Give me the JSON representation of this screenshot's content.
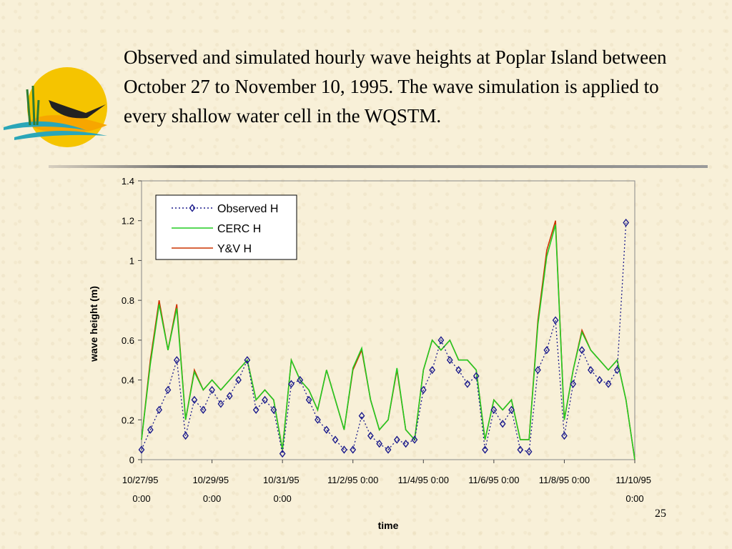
{
  "title": "Observed and simulated hourly wave heights at Poplar Island between October 27 to November 10, 1995. The wave simulation is applied to every shallow water cell in the WQSTM.",
  "page_number": "25",
  "chart_data": {
    "type": "line",
    "x_label": "time",
    "y_label": "wave height (m)",
    "x": [
      "10/27/95 0:00",
      "10/27/95 6:00",
      "10/27/95 12:00",
      "10/27/95 18:00",
      "10/28/95 0:00",
      "10/28/95 6:00",
      "10/28/95 12:00",
      "10/28/95 18:00",
      "10/29/95 0:00",
      "10/29/95 6:00",
      "10/29/95 12:00",
      "10/29/95 18:00",
      "10/30/95 0:00",
      "10/30/95 6:00",
      "10/30/95 12:00",
      "10/30/95 18:00",
      "10/31/95 0:00",
      "10/31/95 6:00",
      "10/31/95 12:00",
      "10/31/95 18:00",
      "11/1/95 0:00",
      "11/1/95 6:00",
      "11/1/95 12:00",
      "11/1/95 18:00",
      "11/2/95 0:00",
      "11/2/95 6:00",
      "11/2/95 12:00",
      "11/2/95 18:00",
      "11/3/95 0:00",
      "11/3/95 6:00",
      "11/3/95 12:00",
      "11/3/95 18:00",
      "11/4/95 0:00",
      "11/4/95 6:00",
      "11/4/95 12:00",
      "11/4/95 18:00",
      "11/5/95 0:00",
      "11/5/95 6:00",
      "11/5/95 12:00",
      "11/5/95 18:00",
      "11/6/95 0:00",
      "11/6/95 6:00",
      "11/6/95 12:00",
      "11/6/95 18:00",
      "11/7/95 0:00",
      "11/7/95 6:00",
      "11/7/95 12:00",
      "11/7/95 18:00",
      "11/8/95 0:00",
      "11/8/95 6:00",
      "11/8/95 12:00",
      "11/8/95 18:00",
      "11/9/95 0:00",
      "11/9/95 6:00",
      "11/9/95 12:00",
      "11/9/95 18:00",
      "11/10/95 0:00"
    ],
    "series": [
      {
        "name": "Observed H",
        "color": "#1c1c8c",
        "marker": "diamond",
        "linestyle": "dotted",
        "values": [
          0.05,
          0.15,
          0.25,
          0.35,
          0.5,
          0.12,
          0.3,
          0.25,
          0.35,
          0.28,
          0.32,
          0.4,
          0.5,
          0.25,
          0.3,
          0.25,
          0.03,
          0.38,
          0.4,
          0.3,
          0.2,
          0.15,
          0.1,
          0.05,
          0.05,
          0.22,
          0.12,
          0.08,
          0.05,
          0.1,
          0.08,
          0.1,
          0.35,
          0.45,
          0.6,
          0.5,
          0.45,
          0.38,
          0.42,
          0.05,
          0.25,
          0.18,
          0.25,
          0.05,
          0.04,
          0.45,
          0.55,
          0.7,
          0.12,
          0.38,
          0.55,
          0.45,
          0.4,
          0.38,
          0.45,
          1.19,
          null
        ]
      },
      {
        "name": "CERC H",
        "color": "#22cc22",
        "values": [
          0.1,
          0.48,
          0.78,
          0.55,
          0.76,
          0.2,
          0.44,
          0.35,
          0.4,
          0.35,
          0.4,
          0.45,
          0.5,
          0.3,
          0.35,
          0.3,
          0.05,
          0.5,
          0.4,
          0.35,
          0.25,
          0.45,
          0.3,
          0.15,
          0.46,
          0.56,
          0.3,
          0.15,
          0.2,
          0.46,
          0.15,
          0.1,
          0.45,
          0.6,
          0.55,
          0.6,
          0.5,
          0.5,
          0.45,
          0.1,
          0.3,
          0.25,
          0.3,
          0.1,
          0.1,
          0.68,
          1.02,
          1.18,
          0.2,
          0.45,
          0.64,
          0.55,
          0.5,
          0.45,
          0.5,
          0.3,
          0.0
        ]
      },
      {
        "name": "Y&V H",
        "color": "#cc3300",
        "values": [
          0.1,
          0.5,
          0.8,
          0.55,
          0.78,
          0.2,
          0.45,
          0.35,
          0.4,
          0.35,
          0.4,
          0.45,
          0.5,
          0.3,
          0.35,
          0.3,
          0.05,
          0.5,
          0.4,
          0.35,
          0.25,
          0.45,
          0.3,
          0.15,
          0.45,
          0.55,
          0.3,
          0.15,
          0.2,
          0.45,
          0.15,
          0.1,
          0.45,
          0.6,
          0.55,
          0.6,
          0.5,
          0.5,
          0.45,
          0.1,
          0.3,
          0.25,
          0.3,
          0.1,
          0.1,
          0.7,
          1.05,
          1.2,
          0.2,
          0.45,
          0.65,
          0.55,
          0.5,
          0.45,
          0.5,
          0.3,
          0.0
        ]
      }
    ],
    "xlim": [
      "10/27/95 0:00",
      "11/10/95 0:00"
    ],
    "xticks": [
      "10/27/95 0:00",
      "10/29/95 0:00",
      "10/31/95 0:00",
      "11/2/95 0:00",
      "11/4/95 0:00",
      "11/6/95 0:00",
      "11/8/95 0:00",
      "11/10/95 0:00"
    ],
    "ylim": [
      0,
      1.4
    ],
    "yticks": [
      0,
      0.2,
      0.4,
      0.6,
      0.8,
      1,
      1.2,
      1.4
    ],
    "legend": "upper left"
  }
}
